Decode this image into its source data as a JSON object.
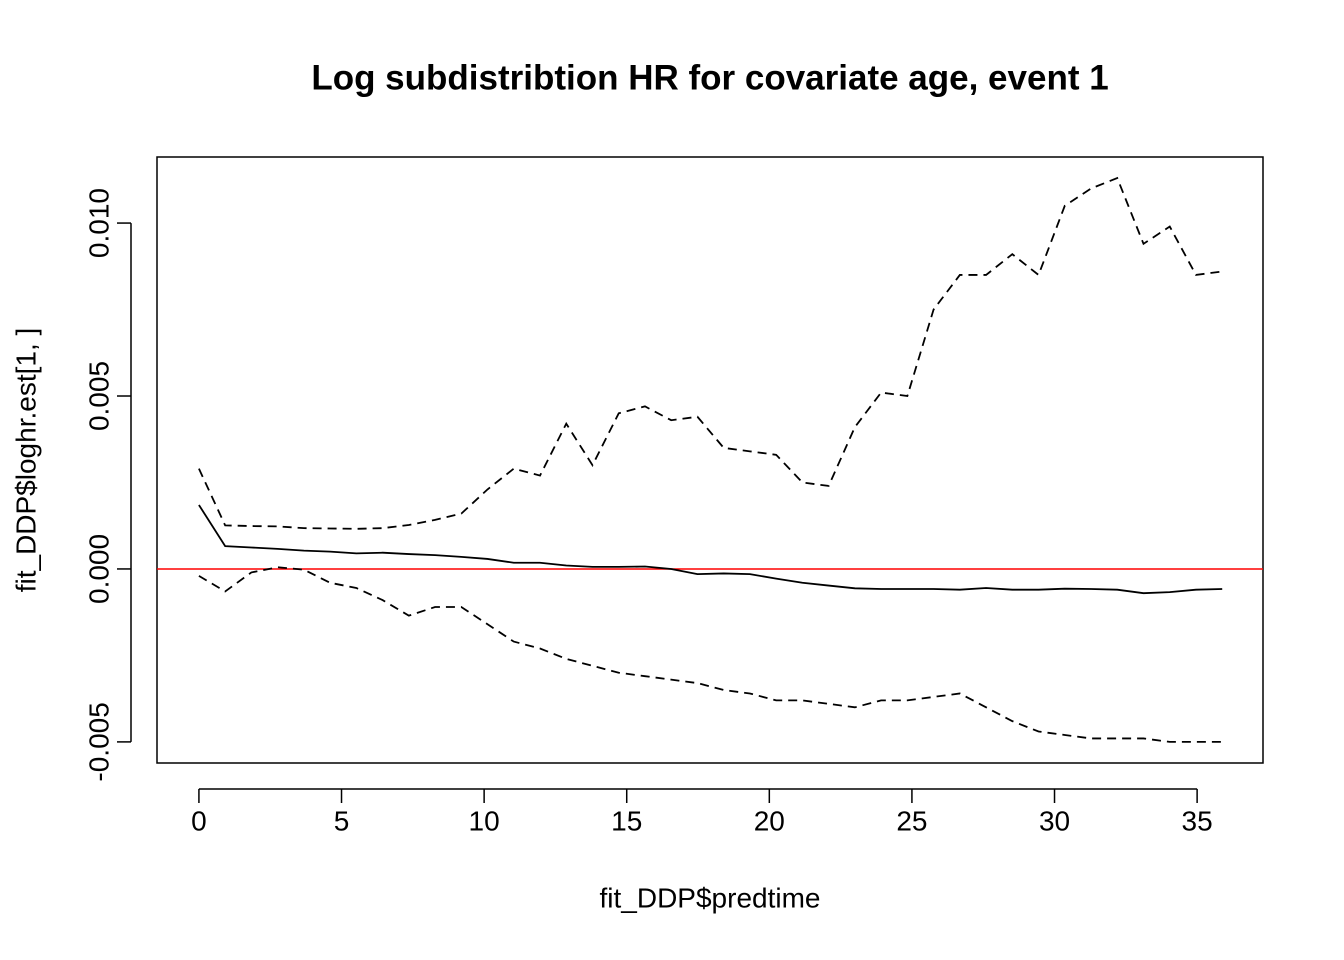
{
  "chart_data": {
    "type": "line",
    "title": "Log subdistribtion HR for covariate age, event 1",
    "x_label": "fit_DDP$predtime",
    "y_label": "fit_DDP$loghr.est[1, ]",
    "x": [
      0,
      0.92,
      1.84,
      2.76,
      3.68,
      4.6,
      5.52,
      6.44,
      7.36,
      8.28,
      9.2,
      10.12,
      11.04,
      11.96,
      12.88,
      13.8,
      14.72,
      15.64,
      16.56,
      17.48,
      18.4,
      19.32,
      20.24,
      21.16,
      22.08,
      23,
      23.92,
      24.84,
      25.76,
      26.68,
      27.6,
      28.52,
      29.44,
      30.36,
      31.28,
      32.2,
      33.12,
      34.04,
      34.96,
      35.88
    ],
    "series": [
      {
        "color": "#000000",
        "dash": false,
        "values": [
          0.00185,
          0.00066,
          0.00062,
          0.00058,
          0.00053,
          0.0005,
          0.00045,
          0.00047,
          0.00043,
          0.0004,
          0.00035,
          0.00029,
          0.00018,
          0.00018,
          0.0001,
          6e-05,
          6e-05,
          7e-05,
          0,
          -0.00015,
          -0.00013,
          -0.00015,
          -0.00028,
          -0.0004,
          -0.00048,
          -0.00056,
          -0.00058,
          -0.00058,
          -0.00058,
          -0.0006,
          -0.00055,
          -0.0006,
          -0.0006,
          -0.00057,
          -0.00058,
          -0.0006,
          -0.0007,
          -0.00067,
          -0.0006,
          -0.00058
        ]
      },
      {
        "color": "#000000",
        "dash": true,
        "values": [
          0.0029,
          0.00126,
          0.00124,
          0.00123,
          0.00118,
          0.00117,
          0.00116,
          0.00118,
          0.00127,
          0.00142,
          0.0016,
          0.0023,
          0.0029,
          0.0027,
          0.0042,
          0.003,
          0.0045,
          0.0047,
          0.0043,
          0.0044,
          0.0035,
          0.0034,
          0.0033,
          0.0025,
          0.0024,
          0.0041,
          0.0051,
          0.005,
          0.0075,
          0.0085,
          0.0085,
          0.0091,
          0.0085,
          0.0105,
          0.011,
          0.0113,
          0.0094,
          0.0099,
          0.0085,
          0.0086
        ]
      },
      {
        "color": "#000000",
        "dash": true,
        "values": [
          -0.0002,
          -0.00065,
          -0.0001,
          5e-05,
          -2e-05,
          -0.0004,
          -0.00055,
          -0.0009,
          -0.00135,
          -0.0011,
          -0.0011,
          -0.0016,
          -0.0021,
          -0.0023,
          -0.0026,
          -0.0028,
          -0.003,
          -0.0031,
          -0.0032,
          -0.0033,
          -0.0035,
          -0.0036,
          -0.0038,
          -0.0038,
          -0.0039,
          -0.004,
          -0.0038,
          -0.0038,
          -0.0037,
          -0.0036,
          -0.004,
          -0.0044,
          -0.0047,
          -0.0048,
          -0.0049,
          -0.0049,
          -0.0049,
          -0.005,
          -0.005,
          -0.005
        ]
      }
    ],
    "hline": {
      "value": 0,
      "color": "#ff0000"
    },
    "xlim": [
      -1.47,
      37.31
    ],
    "ylim": [
      -0.00561,
      0.01191
    ],
    "xticks": [
      0,
      5,
      10,
      15,
      20,
      25,
      30,
      35
    ],
    "yticks": [
      -0.005,
      {
        "value": 0,
        "label": "0.000"
      },
      0.005,
      {
        "value": 0.01,
        "label": "0.010"
      }
    ]
  }
}
